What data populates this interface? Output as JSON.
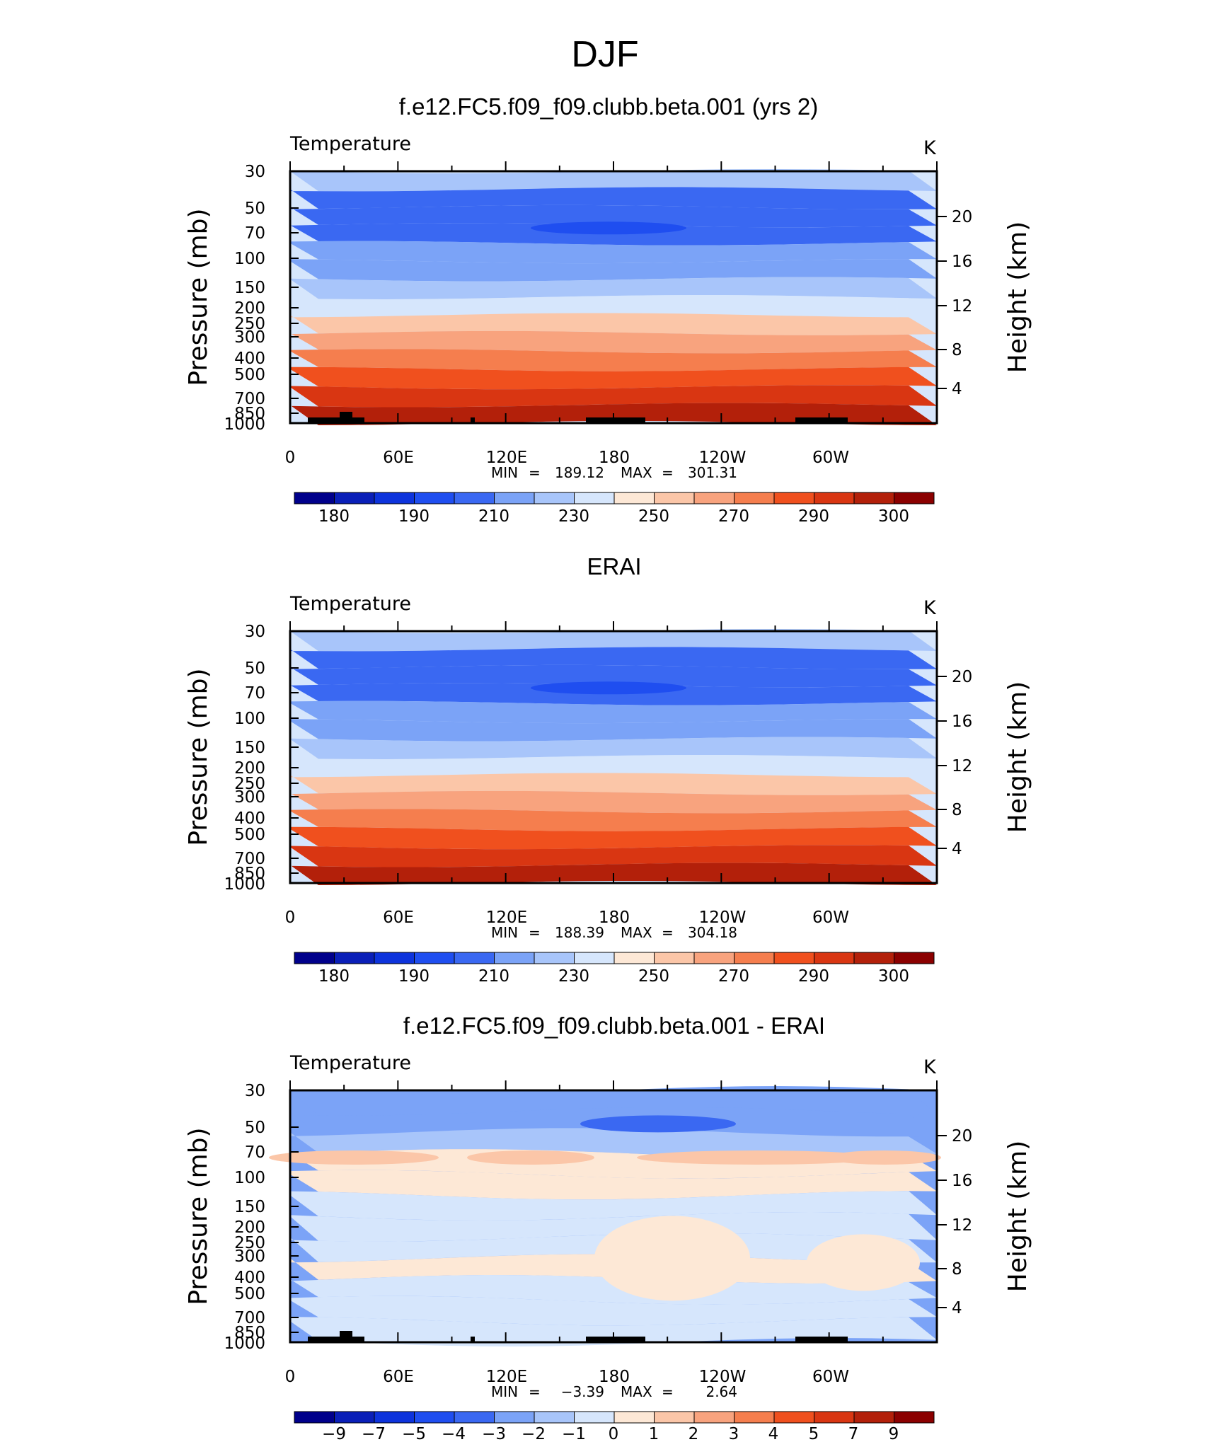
{
  "figure_title": "DJF",
  "chart_data": [
    {
      "type": "heatmap",
      "title": "f.e12.FC5.f09_f09.clubb.beta.001 (yrs 2)",
      "left_label": "Temperature",
      "units": "K",
      "ylabel": "Pressure (mb)",
      "ylabel_right": "Height (km)",
      "x_ticks": [
        "0",
        "60E",
        "120E",
        "180",
        "120W",
        "60W"
      ],
      "y_ticks": [
        "30",
        "50",
        "70",
        "100",
        "150",
        "200",
        "250",
        "300",
        "400",
        "500",
        "700",
        "850",
        "1000"
      ],
      "y_ticks_right": [
        "20",
        "16",
        "12",
        "8",
        "4"
      ],
      "min_label": "MIN",
      "min": "189.12",
      "max_label": "MAX",
      "max": "301.31",
      "colorbar_labels": [
        "180",
        "190",
        "210",
        "230",
        "250",
        "270",
        "290",
        "300"
      ],
      "profile": [
        230,
        213,
        203,
        200,
        208,
        215,
        224,
        232,
        245,
        258,
        270,
        281,
        290,
        295,
        300
      ],
      "has_topography": true
    },
    {
      "type": "heatmap",
      "title": "ERAI",
      "left_label": "Temperature",
      "units": "K",
      "ylabel": "Pressure (mb)",
      "ylabel_right": "Height (km)",
      "x_ticks": [
        "0",
        "60E",
        "120E",
        "180",
        "120W",
        "60W"
      ],
      "y_ticks": [
        "30",
        "50",
        "70",
        "100",
        "150",
        "200",
        "250",
        "300",
        "400",
        "500",
        "700",
        "850",
        "1000"
      ],
      "y_ticks_right": [
        "20",
        "16",
        "12",
        "8",
        "4"
      ],
      "min_label": "MIN",
      "min": "188.39",
      "max_label": "MAX",
      "max": "304.18",
      "colorbar_labels": [
        "180",
        "190",
        "210",
        "230",
        "250",
        "270",
        "290",
        "300"
      ],
      "profile": [
        230,
        213,
        203,
        200,
        208,
        215,
        224,
        232,
        245,
        258,
        270,
        281,
        290,
        295,
        300
      ],
      "has_topography": false
    },
    {
      "type": "heatmap",
      "title": "f.e12.FC5.f09_f09.clubb.beta.001 - ERAI",
      "left_label": "Temperature",
      "units": "K",
      "ylabel": "Pressure (mb)",
      "ylabel_right": "Height (km)",
      "x_ticks": [
        "0",
        "60E",
        "120E",
        "180",
        "120W",
        "60W"
      ],
      "y_ticks": [
        "30",
        "50",
        "70",
        "100",
        "150",
        "200",
        "250",
        "300",
        "400",
        "500",
        "700",
        "850",
        "1000"
      ],
      "y_ticks_right": [
        "20",
        "16",
        "12",
        "8",
        "4"
      ],
      "min_label": "MIN",
      "min": "−3.39",
      "max_label": "MAX",
      "max": "2.64",
      "colorbar_labels": [
        "−9",
        "−7",
        "−5",
        "−4",
        "−3",
        "−2",
        "−1",
        "0",
        "1",
        "2",
        "3",
        "4",
        "5",
        "7",
        "9"
      ],
      "profile": [
        -2.6,
        -2.6,
        -2.2,
        -0.6,
        0.8,
        0.4,
        -0.6,
        -0.6,
        0.4,
        0.4,
        -0.6,
        -0.8,
        -0.5
      ],
      "has_topography": true
    }
  ],
  "colors": {
    "abs_palette": [
      "#00008b",
      "#0a1fb8",
      "#0d33dc",
      "#1f4ef0",
      "#3a68f2",
      "#7ba3f7",
      "#a8c5fa",
      "#d6e6fc",
      "#fde8d6",
      "#fbc6a8",
      "#f8a37e",
      "#f57e4e",
      "#f0501e",
      "#d93612",
      "#b3200a",
      "#8b0000"
    ],
    "diff_palette": [
      "#00008b",
      "#0a1fb8",
      "#0d33dc",
      "#1f4ef0",
      "#3a68f2",
      "#7ba3f7",
      "#a8c5fa",
      "#d6e6fc",
      "#fde8d6",
      "#fbc6a8",
      "#f8a37e",
      "#f57e4e",
      "#f0501e",
      "#d93612",
      "#b3200a",
      "#8b0000"
    ]
  }
}
